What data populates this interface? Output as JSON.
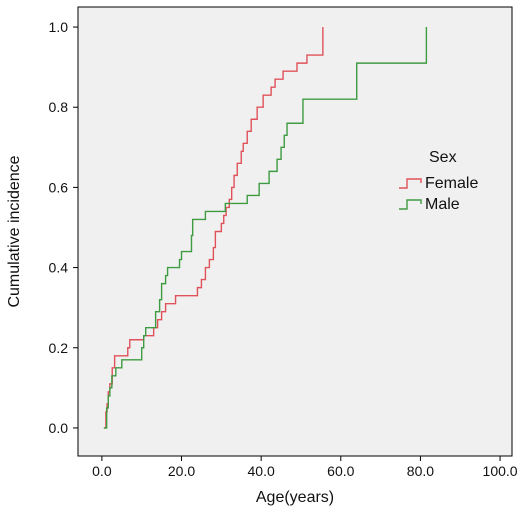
{
  "chart_data": {
    "type": "line",
    "step": true,
    "xlabel": "Age(years)",
    "ylabel": "Cumulative incidence",
    "xlim": [
      -6,
      103
    ],
    "ylim": [
      -0.07,
      1.05
    ],
    "x_ticks": [
      0,
      20,
      40,
      60,
      80,
      100
    ],
    "x_tick_labels": [
      "0.0",
      "20.0",
      "40.0",
      "60.0",
      "80.0",
      "100.0"
    ],
    "y_ticks": [
      0,
      0.2,
      0.4,
      0.6,
      0.8,
      1.0
    ],
    "y_tick_labels": [
      "0.0",
      "0.2",
      "0.4",
      "0.6",
      "0.8",
      "1.0"
    ],
    "grid": false,
    "legend": {
      "title": "Sex",
      "position": "right"
    },
    "plot_background": "#f0f0f0",
    "series": [
      {
        "name": "Female",
        "color": "#e0525a",
        "points": [
          [
            0.5,
            0
          ],
          [
            1,
            0.04
          ],
          [
            1.3,
            0.06
          ],
          [
            1.6,
            0.09
          ],
          [
            2,
            0.11
          ],
          [
            2.6,
            0.15
          ],
          [
            3.2,
            0.18
          ],
          [
            6.5,
            0.2
          ],
          [
            7,
            0.22
          ],
          [
            10.5,
            0.23
          ],
          [
            13,
            0.25
          ],
          [
            14,
            0.27
          ],
          [
            15,
            0.29
          ],
          [
            16,
            0.31
          ],
          [
            18.5,
            0.33
          ],
          [
            24,
            0.35
          ],
          [
            25,
            0.37
          ],
          [
            26,
            0.4
          ],
          [
            27,
            0.42
          ],
          [
            28,
            0.45
          ],
          [
            28.5,
            0.49
          ],
          [
            30,
            0.51
          ],
          [
            30.6,
            0.53
          ],
          [
            31.2,
            0.55
          ],
          [
            32,
            0.57
          ],
          [
            32.6,
            0.6
          ],
          [
            33.2,
            0.63
          ],
          [
            34,
            0.66
          ],
          [
            35,
            0.69
          ],
          [
            35.5,
            0.71
          ],
          [
            36.5,
            0.74
          ],
          [
            37.5,
            0.77
          ],
          [
            39,
            0.8
          ],
          [
            40.5,
            0.83
          ],
          [
            42.5,
            0.85
          ],
          [
            43.5,
            0.87
          ],
          [
            45.5,
            0.89
          ],
          [
            49,
            0.91
          ],
          [
            51.5,
            0.93
          ],
          [
            55.5,
            1.0
          ]
        ]
      },
      {
        "name": "Male",
        "color": "#3f9b42",
        "points": [
          [
            0.5,
            0
          ],
          [
            1.2,
            0.05
          ],
          [
            1.6,
            0.08
          ],
          [
            2,
            0.1
          ],
          [
            2.5,
            0.13
          ],
          [
            3.5,
            0.15
          ],
          [
            5,
            0.17
          ],
          [
            10,
            0.2
          ],
          [
            10.5,
            0.23
          ],
          [
            11,
            0.25
          ],
          [
            13.5,
            0.29
          ],
          [
            14.5,
            0.32
          ],
          [
            15,
            0.36
          ],
          [
            16,
            0.38
          ],
          [
            16.5,
            0.4
          ],
          [
            19.5,
            0.42
          ],
          [
            20,
            0.44
          ],
          [
            22.5,
            0.48
          ],
          [
            22.8,
            0.52
          ],
          [
            26,
            0.54
          ],
          [
            31,
            0.56
          ],
          [
            36.5,
            0.58
          ],
          [
            39.5,
            0.61
          ],
          [
            42,
            0.64
          ],
          [
            44,
            0.67
          ],
          [
            45,
            0.7
          ],
          [
            45.8,
            0.73
          ],
          [
            46.5,
            0.76
          ],
          [
            50.5,
            0.82
          ],
          [
            64,
            0.91
          ],
          [
            81.5,
            1.0
          ]
        ]
      }
    ]
  }
}
